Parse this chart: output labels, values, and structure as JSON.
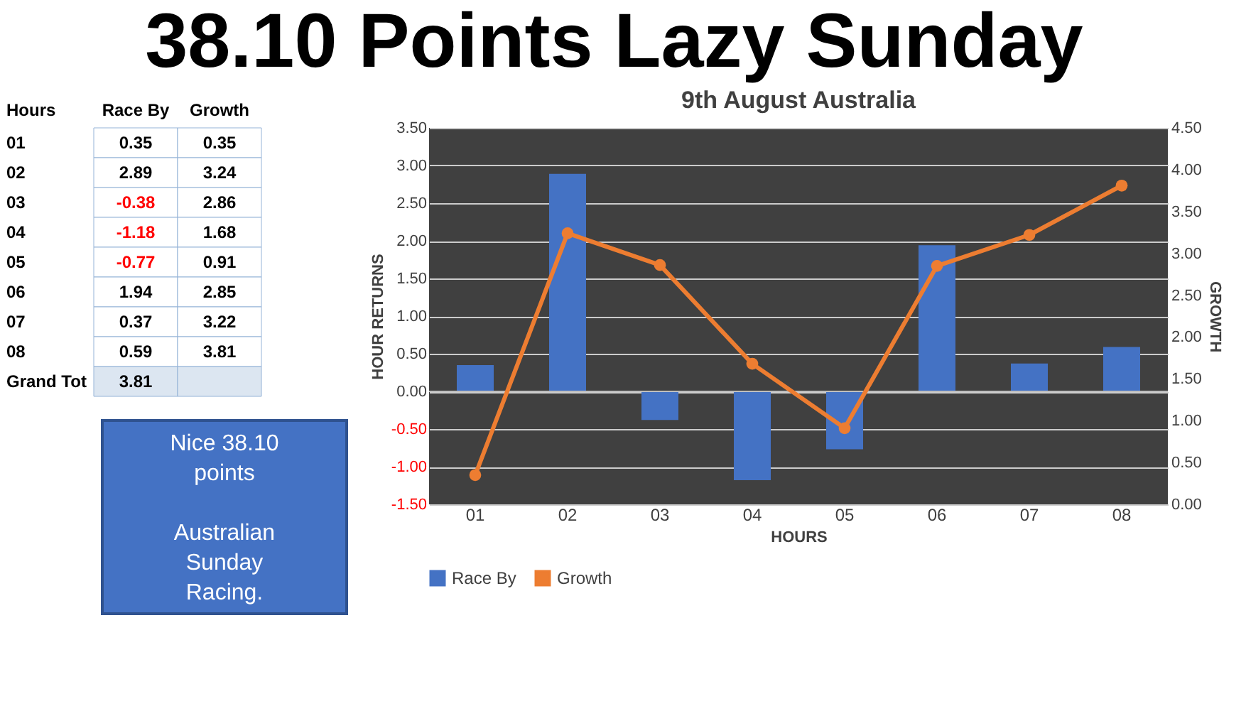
{
  "chart_data": [
    {
      "type": "bar",
      "title": "38.10 Points Lazy Sunday",
      "subtitle": "9th August Australia",
      "xlabel": "HOURS",
      "ylabel": "HOUR RETURNS",
      "y2label": "GROWTH",
      "categories": [
        "01",
        "02",
        "03",
        "04",
        "05",
        "06",
        "07",
        "08"
      ],
      "series": [
        {
          "name": "Race By",
          "type": "bar",
          "color": "#4472c4",
          "values": [
            0.35,
            2.89,
            -0.38,
            -1.18,
            -0.77,
            1.94,
            0.37,
            0.59
          ]
        },
        {
          "name": "Growth",
          "type": "line",
          "axis": "y2",
          "color": "#ed7d31",
          "marker": "circle",
          "values": [
            0.35,
            3.24,
            2.86,
            1.68,
            0.91,
            2.85,
            3.22,
            3.81
          ]
        }
      ],
      "ylim": [
        -1.5,
        3.5
      ],
      "yticks": [
        {
          "value": -1.5,
          "label": "-1.50"
        },
        {
          "value": -1,
          "label": "-1.00"
        },
        {
          "value": -0.5,
          "label": "-0.50"
        },
        {
          "value": 0,
          "label": "0.00"
        },
        {
          "value": 0.5,
          "label": "0.50"
        },
        {
          "value": 1,
          "label": "1.00"
        },
        {
          "value": 1.5,
          "label": "1.50"
        },
        {
          "value": 2,
          "label": "2.00"
        },
        {
          "value": 2.5,
          "label": "2.50"
        },
        {
          "value": 3,
          "label": "3.00"
        },
        {
          "value": 3.5,
          "label": "3.50"
        }
      ],
      "y2lim": [
        0,
        4.5
      ],
      "y2ticks": [
        {
          "value": 0,
          "label": "0.00"
        },
        {
          "value": 0.5,
          "label": "0.50"
        },
        {
          "value": 1,
          "label": "1.00"
        },
        {
          "value": 1.5,
          "label": "1.50"
        },
        {
          "value": 2,
          "label": "2.00"
        },
        {
          "value": 2.5,
          "label": "2.50"
        },
        {
          "value": 3,
          "label": "3.00"
        },
        {
          "value": 3.5,
          "label": "3.50"
        },
        {
          "value": 4,
          "label": "4.00"
        },
        {
          "value": 4.5,
          "label": "4.50"
        }
      ],
      "grid": "y",
      "legend": "bottom",
      "annotations": [
        "Nice 38.10\npoints\n\nAustralian\nSunday\nRacing."
      ]
    },
    {
      "type": "heatmap",
      "ylabel": "Hours",
      "data_labels": true,
      "categories": [
        "Race By",
        "Growth"
      ],
      "y_categories": [
        "01",
        "02",
        "03",
        "04",
        "05",
        "06",
        "07",
        "08",
        "Grand Tot"
      ],
      "cells": [
        [
          0.35,
          0.35
        ],
        [
          2.89,
          3.24
        ],
        [
          -0.38,
          2.86
        ],
        [
          -1.18,
          1.68
        ],
        [
          -0.77,
          0.91
        ],
        [
          1.94,
          2.85
        ],
        [
          0.37,
          3.22
        ],
        [
          0.59,
          3.81
        ],
        [
          3.81,
          null
        ]
      ]
    }
  ]
}
